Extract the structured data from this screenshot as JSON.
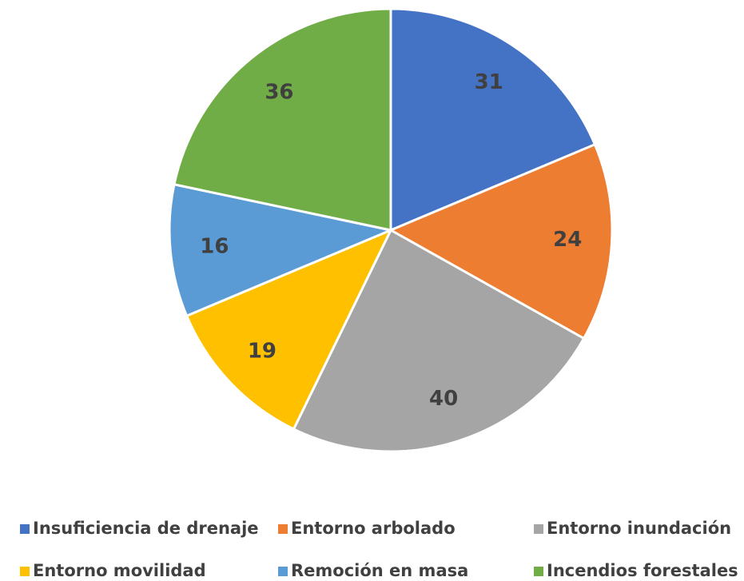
{
  "chart_data": {
    "type": "pie",
    "categories": [
      "Insuficiencia de drenaje",
      "Entorno arbolado",
      "Entorno inundación",
      "Entorno movilidad",
      "Remoción en masa",
      "Incendios forestales"
    ],
    "values": [
      31,
      24,
      40,
      19,
      16,
      36
    ],
    "colors": [
      "#4472c4",
      "#ed7d31",
      "#a5a5a5",
      "#ffc000",
      "#5b9bd5",
      "#70ad47"
    ],
    "legend": "bottom"
  }
}
